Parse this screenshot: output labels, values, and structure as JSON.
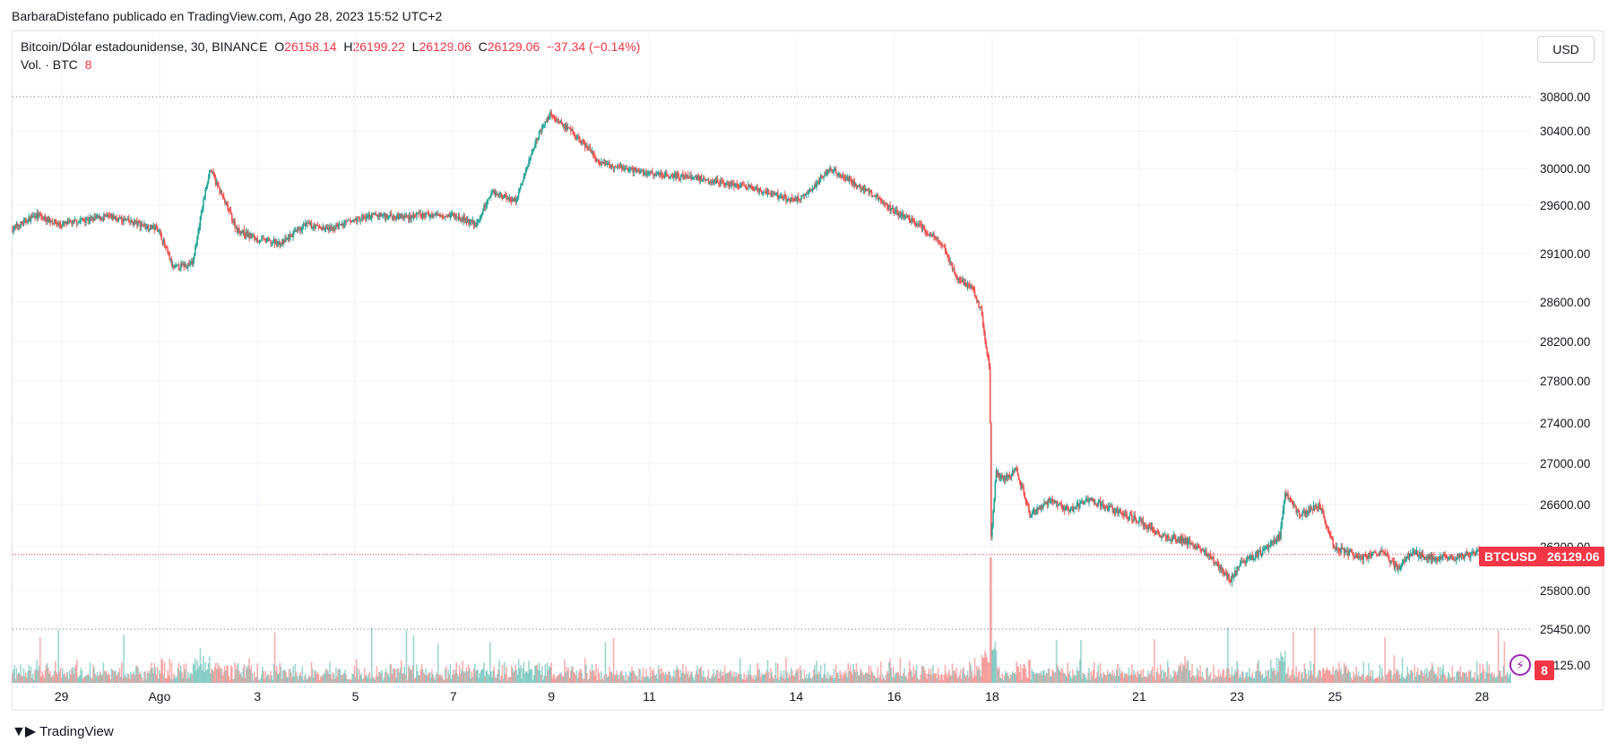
{
  "header": {
    "published_line": "BarbaraDistefano publicado en TradingView.com, Ago 28, 2023 15:52 UTC+2"
  },
  "legend": {
    "symbol_title": "Bitcoin/Dólar estadounidense, 30, BINANCE",
    "open_label": "O",
    "open_value": "26158.14",
    "high_label": "H",
    "high_value": "26199.22",
    "low_label": "L",
    "low_value": "26129.06",
    "close_label": "C",
    "close_value": "26129.06",
    "change": "−37.34 (−0.14%)",
    "volume_label": "Vol. · BTC",
    "volume_value": "8"
  },
  "toolbar": {
    "currency_button": "USD"
  },
  "price_tag": {
    "symbol": "BTCUSD",
    "value": "26129.06"
  },
  "volume_tag": {
    "value": "8"
  },
  "footer": {
    "logo_text": "TradingView"
  },
  "colors": {
    "up": "#26a69a",
    "down": "#ef5350",
    "last_price": "#f23645",
    "grid": "#f0f3fa",
    "bolt": "#9c27b0"
  },
  "chart_data": {
    "type": "candlestick",
    "interval": "30",
    "symbol": "BTCUSD",
    "exchange": "BINANCE",
    "y_ticks": [
      30800,
      30400,
      30000,
      29600,
      29100,
      28600,
      28200,
      27800,
      27400,
      27000,
      26600,
      26200,
      25800,
      25450,
      25125
    ],
    "y_tick_labels": [
      "30800.00",
      "30400.00",
      "30000.00",
      "29600.00",
      "29100.00",
      "28600.00",
      "28200.00",
      "27800.00",
      "27400.00",
      "27000.00",
      "26600.00",
      "26200.00",
      "25800.00",
      "25450.00",
      "25125.00"
    ],
    "ylim": [
      25125,
      30800
    ],
    "x_ticks": [
      {
        "label": "29",
        "day": 29
      },
      {
        "label": "Ago",
        "day": 31
      },
      {
        "label": "3",
        "day": 33
      },
      {
        "label": "5",
        "day": 35
      },
      {
        "label": "7",
        "day": 37
      },
      {
        "label": "9",
        "day": 39
      },
      {
        "label": "11",
        "day": 41
      },
      {
        "label": "14",
        "day": 44
      },
      {
        "label": "16",
        "day": 46
      },
      {
        "label": "18",
        "day": 48
      },
      {
        "label": "21",
        "day": 51
      },
      {
        "label": "23",
        "day": 53
      },
      {
        "label": "25",
        "day": 55
      },
      {
        "label": "28",
        "day": 58
      }
    ],
    "series_points": [
      {
        "day": 28.0,
        "price": 29350
      },
      {
        "day": 28.5,
        "price": 29500
      },
      {
        "day": 29.0,
        "price": 29400
      },
      {
        "day": 29.5,
        "price": 29450
      },
      {
        "day": 30.0,
        "price": 29480
      },
      {
        "day": 30.5,
        "price": 29420
      },
      {
        "day": 31.0,
        "price": 29350
      },
      {
        "day": 31.3,
        "price": 28950
      },
      {
        "day": 31.7,
        "price": 29000
      },
      {
        "day": 31.9,
        "price": 29600
      },
      {
        "day": 32.05,
        "price": 30000
      },
      {
        "day": 32.3,
        "price": 29700
      },
      {
        "day": 32.6,
        "price": 29350
      },
      {
        "day": 33.0,
        "price": 29250
      },
      {
        "day": 33.5,
        "price": 29200
      },
      {
        "day": 34.0,
        "price": 29400
      },
      {
        "day": 34.5,
        "price": 29350
      },
      {
        "day": 35.0,
        "price": 29450
      },
      {
        "day": 35.5,
        "price": 29500
      },
      {
        "day": 36.0,
        "price": 29480
      },
      {
        "day": 36.5,
        "price": 29500
      },
      {
        "day": 37.0,
        "price": 29500
      },
      {
        "day": 37.5,
        "price": 29400
      },
      {
        "day": 37.8,
        "price": 29750
      },
      {
        "day": 38.3,
        "price": 29650
      },
      {
        "day": 38.7,
        "price": 30300
      },
      {
        "day": 39.0,
        "price": 30600
      },
      {
        "day": 39.3,
        "price": 30450
      },
      {
        "day": 39.6,
        "price": 30300
      },
      {
        "day": 39.8,
        "price": 30200
      },
      {
        "day": 40.0,
        "price": 30050
      },
      {
        "day": 41.0,
        "price": 29950
      },
      {
        "day": 42.0,
        "price": 29900
      },
      {
        "day": 43.0,
        "price": 29800
      },
      {
        "day": 44.0,
        "price": 29650
      },
      {
        "day": 44.3,
        "price": 29750
      },
      {
        "day": 44.7,
        "price": 30000
      },
      {
        "day": 45.0,
        "price": 29900
      },
      {
        "day": 45.5,
        "price": 29750
      },
      {
        "day": 46.0,
        "price": 29550
      },
      {
        "day": 46.5,
        "price": 29400
      },
      {
        "day": 47.0,
        "price": 29200
      },
      {
        "day": 47.3,
        "price": 28850
      },
      {
        "day": 47.6,
        "price": 28750
      },
      {
        "day": 47.8,
        "price": 28500
      },
      {
        "day": 47.9,
        "price": 28150
      },
      {
        "day": 47.97,
        "price": 27900
      },
      {
        "day": 48.0,
        "price": 26300
      },
      {
        "day": 48.1,
        "price": 26900
      },
      {
        "day": 48.3,
        "price": 26850
      },
      {
        "day": 48.5,
        "price": 26950
      },
      {
        "day": 48.8,
        "price": 26500
      },
      {
        "day": 49.2,
        "price": 26650
      },
      {
        "day": 49.6,
        "price": 26550
      },
      {
        "day": 50.0,
        "price": 26650
      },
      {
        "day": 50.5,
        "price": 26550
      },
      {
        "day": 51.0,
        "price": 26450
      },
      {
        "day": 51.5,
        "price": 26300
      },
      {
        "day": 52.0,
        "price": 26250
      },
      {
        "day": 52.5,
        "price": 26100
      },
      {
        "day": 52.9,
        "price": 25900
      },
      {
        "day": 53.1,
        "price": 26050
      },
      {
        "day": 53.5,
        "price": 26150
      },
      {
        "day": 53.9,
        "price": 26300
      },
      {
        "day": 54.0,
        "price": 26700
      },
      {
        "day": 54.3,
        "price": 26500
      },
      {
        "day": 54.7,
        "price": 26600
      },
      {
        "day": 55.0,
        "price": 26200
      },
      {
        "day": 55.5,
        "price": 26100
      },
      {
        "day": 56.0,
        "price": 26150
      },
      {
        "day": 56.3,
        "price": 26000
      },
      {
        "day": 56.6,
        "price": 26150
      },
      {
        "day": 57.0,
        "price": 26100
      },
      {
        "day": 57.5,
        "price": 26100
      },
      {
        "day": 58.0,
        "price": 26150
      },
      {
        "day": 58.3,
        "price": 26060
      },
      {
        "day": 58.6,
        "price": 26129
      }
    ],
    "last_price": 26129.06,
    "high_marker": 30800,
    "low_marker": 25450,
    "volume_value": 8,
    "volume_axis_label": "25125.00"
  }
}
